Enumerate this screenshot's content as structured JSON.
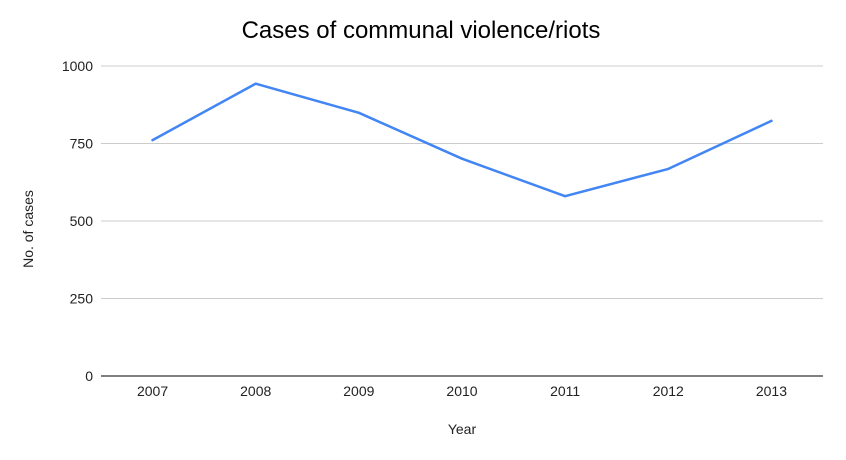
{
  "chart_data": {
    "type": "line",
    "title": "Cases of communal violence/riots",
    "xlabel": "Year",
    "ylabel": "No. of cases",
    "categories": [
      "2007",
      "2008",
      "2009",
      "2010",
      "2011",
      "2012",
      "2013"
    ],
    "series": [
      {
        "values": [
          761,
          943,
          849,
          701,
          580,
          668,
          823
        ],
        "color": "#4285f4"
      }
    ],
    "ylim": [
      0,
      1000
    ],
    "yticks": [
      "0",
      "250",
      "500",
      "750",
      "1000"
    ],
    "grid": true,
    "legend": "none"
  }
}
